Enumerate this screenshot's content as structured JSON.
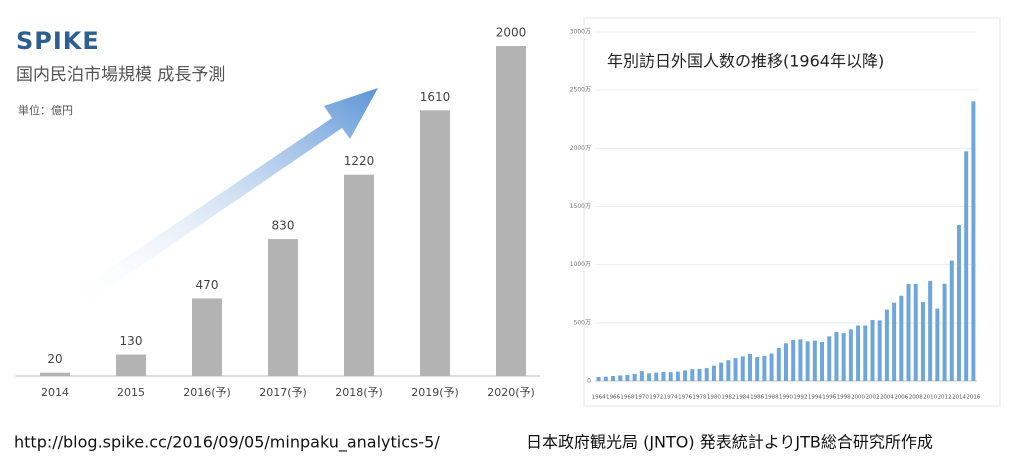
{
  "brand": "SPIKE",
  "unit_note": "単位：億円",
  "source_left": "http://blog.spike.cc/2016/09/05/minpaku_analytics-5/",
  "source_right": "日本政府観光局 (JNTO) 発表統計よりJTB総合研究所作成",
  "chart_data": [
    {
      "type": "bar",
      "title": "国内民泊市場規模 成長予測",
      "categories": [
        "2014",
        "2015",
        "2016(予)",
        "2017(予)",
        "2018(予)",
        "2019(予)",
        "2020(予)"
      ],
      "values": [
        20,
        130,
        470,
        830,
        1220,
        1610,
        2000
      ],
      "color": "#b3b3b3",
      "data_labels": true
    },
    {
      "type": "bar",
      "title": "年別訪日外国人数の推移(1964年以降)",
      "categories": [
        "1964",
        null,
        "1966",
        null,
        "1968",
        null,
        "1970",
        null,
        "1972",
        null,
        "1974",
        null,
        "1976",
        null,
        "1978",
        null,
        "1980",
        null,
        "1982",
        null,
        "1984",
        null,
        "1986",
        null,
        "1988",
        null,
        "1990",
        null,
        "1992",
        null,
        "1994",
        null,
        "1996",
        null,
        "1998",
        null,
        "2000",
        null,
        "2002",
        null,
        "2004",
        null,
        "2006",
        null,
        "2008",
        null,
        "2010",
        null,
        "2012",
        null,
        "2014",
        null,
        "2016"
      ],
      "values": [
        35,
        37,
        43,
        48,
        52,
        61,
        85,
        66,
        72,
        78,
        76,
        81,
        91,
        102,
        104,
        111,
        132,
        158,
        179,
        197,
        211,
        233,
        206,
        216,
        236,
        284,
        324,
        353,
        358,
        341,
        347,
        335,
        384,
        422,
        411,
        444,
        476,
        477,
        524,
        521,
        614,
        673,
        733,
        835,
        835,
        679,
        861,
        622,
        836,
        1036,
        1341,
        1974,
        2404
      ],
      "color": "#6ea6dc",
      "ylim": [
        0,
        3000
      ],
      "yticks": [
        0,
        {
          "value": 500,
          "label": "500万"
        },
        {
          "value": 1000,
          "label": "1000万"
        },
        {
          "value": 1500,
          "label": "1500万"
        },
        {
          "value": 2000,
          "label": "2000万"
        },
        {
          "value": 2500,
          "label": "2500万"
        },
        {
          "value": 3000,
          "label": "3000万"
        }
      ],
      "grid": true
    }
  ]
}
